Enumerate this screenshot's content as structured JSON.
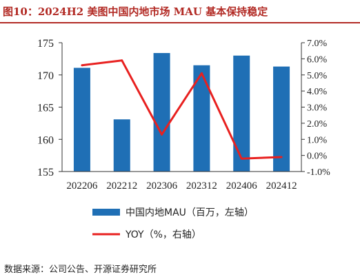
{
  "title": "图10：2024H2 美图中国内地市场 MAU 基本保持稳定",
  "source": "数据来源：公司公告、开源证券研究所",
  "chart_data": {
    "type": "bar",
    "categories": [
      "202206",
      "202212",
      "202306",
      "202312",
      "202406",
      "202412"
    ],
    "series": [
      {
        "name": "中国内地MAU（百万，左轴）",
        "type": "bar",
        "axis": "left",
        "color": "#1f6fb5",
        "values": [
          171.1,
          163.1,
          173.4,
          171.5,
          173.0,
          171.3
        ]
      },
      {
        "name": "YOY（%，右轴）",
        "type": "line",
        "axis": "right",
        "color": "#e8201f",
        "values": [
          5.6,
          5.9,
          1.3,
          5.1,
          -0.2,
          -0.1
        ]
      }
    ],
    "left_axis": {
      "ylim": [
        155,
        175
      ],
      "ticks": [
        "155",
        "160",
        "165",
        "170",
        "175"
      ]
    },
    "right_axis": {
      "ylim": [
        -1,
        7
      ],
      "ticks": [
        "-1.0%",
        "0.0%",
        "1.0%",
        "2.0%",
        "3.0%",
        "4.0%",
        "5.0%",
        "6.0%",
        "7.0%"
      ]
    },
    "grid": false,
    "legend_position": "bottom"
  }
}
